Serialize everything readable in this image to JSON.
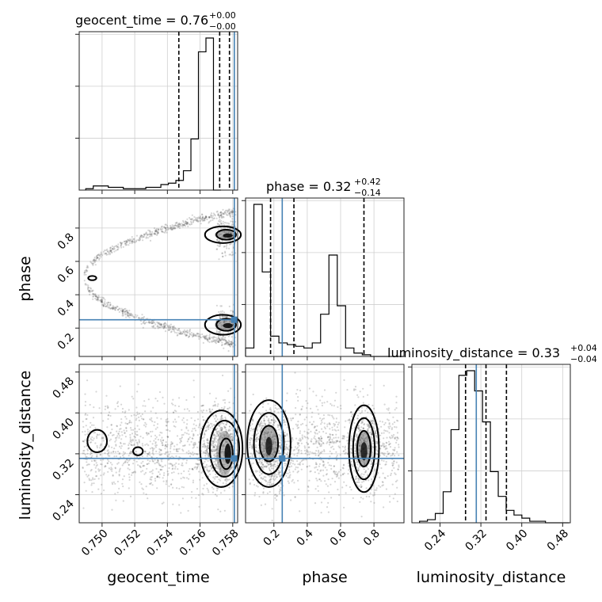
{
  "chart_data": {
    "type": "corner",
    "parameters": [
      {
        "key": "geocent_time",
        "label": "geocent_time",
        "range": [
          0.7486,
          0.7583
        ],
        "ticks": [
          0.75,
          0.752,
          0.754,
          0.756,
          0.758
        ],
        "tick_labels": [
          "0.750",
          "0.752",
          "0.754",
          "0.756",
          "0.758"
        ],
        "title_name": "geocent_time",
        "title_value": "0.76",
        "title_plus": "+0.00",
        "title_minus": "−0.00",
        "truth": 0.7581,
        "quantiles": [
          0.7547,
          0.7572,
          0.7578
        ],
        "hist_edges_start": 0.749,
        "hist_bin_width": 0.00046,
        "hist_counts": [
          1,
          3,
          3,
          2,
          2,
          1,
          1,
          1,
          2,
          2,
          4,
          5,
          7,
          14,
          37,
          100,
          110,
          0
        ]
      },
      {
        "key": "phase",
        "label": "phase",
        "range": [
          0.03,
          0.98
        ],
        "ticks": [
          0.2,
          0.4,
          0.6,
          0.8
        ],
        "tick_labels": [
          "0.2",
          "0.4",
          "0.6",
          "0.8"
        ],
        "title_name": "phase",
        "title_value": "0.32",
        "title_plus": "+0.42",
        "title_minus": "−0.14",
        "truth": 0.25,
        "quantiles": [
          0.18,
          0.32,
          0.74
        ],
        "hist_edges_start": 0.03,
        "hist_bin_width": 0.05,
        "hist_counts": [
          5,
          90,
          50,
          12,
          8,
          7,
          6,
          5,
          8,
          25,
          60,
          30,
          5,
          2,
          1,
          0,
          0,
          0,
          0
        ]
      },
      {
        "key": "luminosity_distance",
        "label": "luminosity_distance",
        "range": [
          0.185,
          0.495
        ],
        "ticks": [
          0.24,
          0.32,
          0.4,
          0.48
        ],
        "tick_labels": [
          "0.24",
          "0.32",
          "0.40",
          "0.48"
        ],
        "title_name": "luminosity_distance",
        "title_value": "0.33",
        "title_plus": "+0.04",
        "title_minus": "−0.04",
        "truth": 0.311,
        "quantiles": [
          0.29,
          0.33,
          0.37
        ],
        "hist_edges_start": 0.2,
        "hist_bin_width": 0.0154,
        "hist_counts": [
          1,
          2,
          6,
          20,
          60,
          95,
          98,
          85,
          65,
          33,
          17,
          8,
          5,
          3,
          1,
          1,
          0,
          0,
          0
        ]
      }
    ],
    "truth_color": "#4682b4",
    "grid": true,
    "contour_levels": 3
  }
}
